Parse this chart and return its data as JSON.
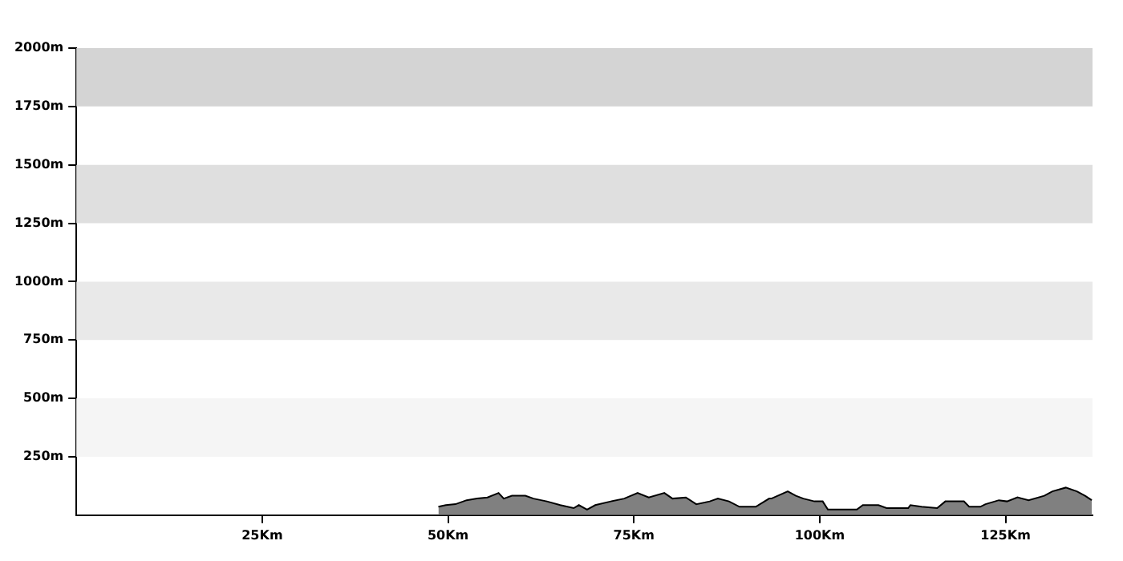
{
  "chart_data": {
    "type": "area",
    "x": [
      48.7,
      49.7,
      51.0,
      52.5,
      53.9,
      55.3,
      56.8,
      57.5,
      58.6,
      60.4,
      61.5,
      63.3,
      65.1,
      66.9,
      67.6,
      68.7,
      69.8,
      71.9,
      73.7,
      75.5,
      77.0,
      79.1,
      80.2,
      82.0,
      83.4,
      85.2,
      86.3,
      87.8,
      89.2,
      91.4,
      93.2,
      93.5,
      95.7,
      96.8,
      97.8,
      99.3,
      100.4,
      101.1,
      105.0,
      105.8,
      107.9,
      109.0,
      111.9,
      112.2,
      113.7,
      115.8,
      116.9,
      119.4,
      120.1,
      121.6,
      122.3,
      124.1,
      125.2,
      126.6,
      128.1,
      130.2,
      131.3,
      133.1,
      134.6,
      135.7,
      136.6
    ],
    "series": [
      {
        "color": "#808080",
        "values": [
          36,
          43,
          47,
          64,
          71,
          76,
          95,
          71,
          83,
          83,
          71,
          59,
          43,
          30,
          43,
          24,
          43,
          59,
          71,
          95,
          76,
          95,
          71,
          76,
          47,
          59,
          71,
          59,
          36,
          36,
          71,
          71,
          102,
          83,
          71,
          59,
          59,
          24,
          24,
          43,
          43,
          30,
          30,
          43,
          36,
          30,
          59,
          59,
          36,
          36,
          47,
          64,
          59,
          76,
          64,
          83,
          102,
          118,
          102,
          83,
          64
        ]
      }
    ],
    "xlim": [
      0,
      136.7
    ],
    "xticks": [
      {
        "value": 25,
        "label": "25Km"
      },
      {
        "value": 50,
        "label": "50Km"
      },
      {
        "value": 75,
        "label": "75Km"
      },
      {
        "value": 100,
        "label": "100Km"
      },
      {
        "value": 125,
        "label": "125Km"
      }
    ],
    "ylim": [
      0,
      2000
    ],
    "yticks": [
      {
        "value": 250,
        "label": "250m"
      },
      {
        "value": 500,
        "label": "500m"
      },
      {
        "value": 750,
        "label": "750m"
      },
      {
        "value": 1000,
        "label": "1000m"
      },
      {
        "value": 1250,
        "label": "1250m"
      },
      {
        "value": 1500,
        "label": "1500m"
      },
      {
        "value": 1750,
        "label": "1750m"
      },
      {
        "value": 2000,
        "label": "2000m"
      }
    ],
    "bands": [
      {
        "axis": "y",
        "from": 250,
        "to": 500,
        "color": "#f5f5f5"
      },
      {
        "axis": "y",
        "from": 750,
        "to": 1000,
        "color": "#e9e9e9"
      },
      {
        "axis": "y",
        "from": 1250,
        "to": 1500,
        "color": "#dfdfdf"
      },
      {
        "axis": "y",
        "from": 1750,
        "to": 2000,
        "color": "#d4d4d4"
      }
    ],
    "grid": false,
    "legend": false
  }
}
